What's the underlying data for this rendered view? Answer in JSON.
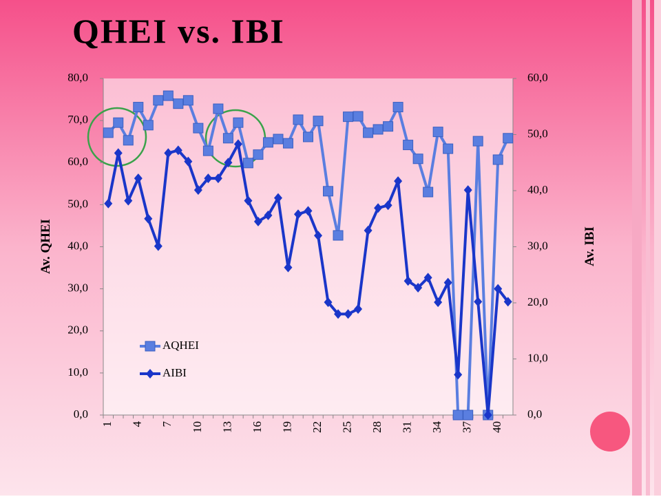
{
  "chart_data": {
    "type": "line",
    "title": "QHEI vs. IBI",
    "categories": [
      1,
      null,
      null,
      4,
      null,
      null,
      7,
      null,
      null,
      10,
      null,
      null,
      13,
      null,
      null,
      16,
      null,
      null,
      19,
      null,
      null,
      22,
      null,
      null,
      25,
      null,
      null,
      28,
      null,
      null,
      31,
      null,
      null,
      34,
      null,
      null,
      37,
      null,
      null,
      40,
      null
    ],
    "series": [
      {
        "name": "AQHEI",
        "color": "#5a7ee0",
        "marker": "square",
        "axis": "y",
        "values": [
          67.1,
          69.5,
          65.3,
          73.2,
          68.9,
          74.8,
          75.9,
          74.0,
          74.8,
          68.2,
          62.8,
          72.8,
          65.8,
          69.5,
          59.9,
          61.9,
          64.8,
          65.6,
          64.6,
          70.2,
          66.1,
          69.9,
          53.2,
          42.7,
          70.9,
          71.0,
          67.1,
          67.9,
          68.6,
          73.2,
          64.2,
          60.9,
          53.0,
          67.3,
          63.3,
          0,
          0,
          65.1,
          0,
          60.7,
          65.8
        ]
      },
      {
        "name": "AIBI",
        "color": "#1a36c9",
        "marker": "diamond",
        "axis": "y2",
        "values": [
          37.7,
          46.7,
          38.2,
          42.2,
          35.0,
          30.1,
          46.7,
          47.2,
          45.2,
          40.1,
          42.2,
          42.2,
          45.0,
          48.3,
          38.2,
          34.5,
          35.6,
          38.7,
          26.3,
          35.8,
          36.4,
          32.0,
          20.1,
          18.0,
          18.0,
          18.9,
          32.9,
          36.9,
          37.4,
          41.7,
          23.9,
          22.7,
          24.5,
          20.1,
          23.6,
          7.2,
          40.1,
          20.2,
          0,
          22.5,
          20.2
        ]
      }
    ],
    "y_label": "Av. QHEI",
    "y2_label": "Av. IBI",
    "ylim": [
      0,
      80
    ],
    "yticks": [
      {
        "value": 0,
        "label": "0,0"
      },
      {
        "value": 10,
        "label": "10,0"
      },
      {
        "value": 20,
        "label": "20,0"
      },
      {
        "value": 30,
        "label": "30,0"
      },
      {
        "value": 40,
        "label": "40,0"
      },
      {
        "value": 50,
        "label": "50,0"
      },
      {
        "value": 60,
        "label": "60,0"
      },
      {
        "value": 70,
        "label": "70,0"
      },
      {
        "value": 80,
        "label": "80,0"
      }
    ],
    "y2lim": [
      0,
      60
    ],
    "y2ticks": [
      {
        "value": 0,
        "label": "0,0"
      },
      {
        "value": 10,
        "label": "10,0"
      },
      {
        "value": 20,
        "label": "20,0"
      },
      {
        "value": 30,
        "label": "30,0"
      },
      {
        "value": 40,
        "label": "40,0"
      },
      {
        "value": 50,
        "label": "50,0"
      },
      {
        "value": 60,
        "label": "60,0"
      }
    ],
    "grid": false,
    "legend": "lower left"
  }
}
